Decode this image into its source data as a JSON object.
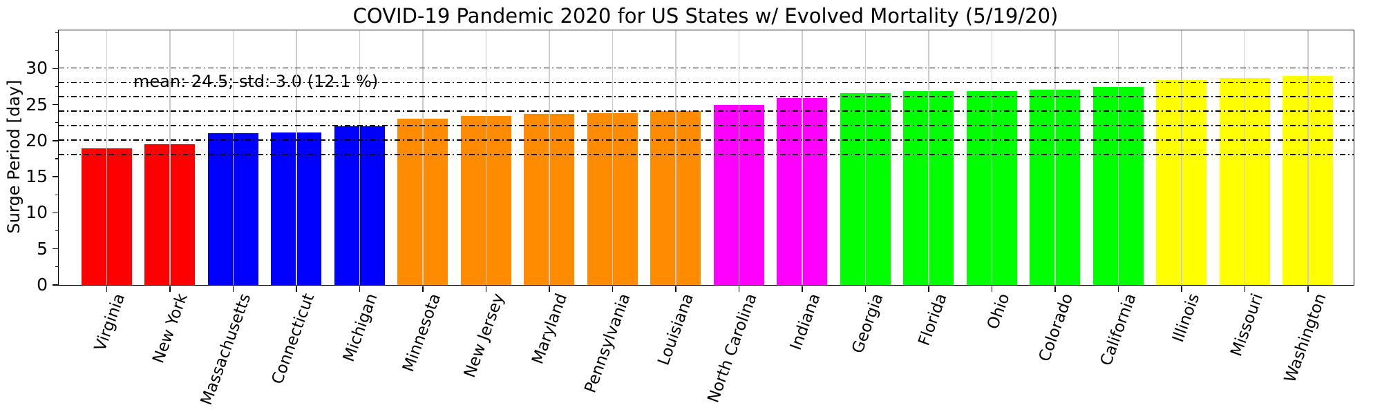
{
  "chart": {
    "title": "COVID-19 Pandemic 2020 for US States w/ Evolved Mortality (5/19/20)",
    "annotation": "mean: 24.5; std: 3.0 (12.1 %)",
    "ylabel": "Surge Period [day]"
  },
  "chart_data": {
    "type": "bar",
    "title": "COVID-19 Pandemic 2020 for US States w/ Evolved Mortality (5/19/20)",
    "xlabel": "",
    "ylabel": "Surge Period [day]",
    "annotation": "mean: 24.5; std: 3.0 (12.1 %)",
    "stats": {
      "mean": 24.5,
      "std": 3.0,
      "std_percent": 12.1
    },
    "categories": [
      "Virginia",
      "New York",
      "Massachusetts",
      "Connecticut",
      "Michigan",
      "Minnesota",
      "New Jersey",
      "Maryland",
      "Pennsylvania",
      "Louisiana",
      "North Carolina",
      "Indiana",
      "Georgia",
      "Florida",
      "Ohio",
      "Colorado",
      "California",
      "Illinois",
      "Missouri",
      "Washington"
    ],
    "values": [
      18.9,
      19.5,
      21.0,
      21.1,
      22.0,
      23.1,
      23.4,
      23.7,
      23.8,
      24.1,
      25.0,
      25.9,
      26.6,
      26.9,
      26.9,
      27.1,
      27.5,
      28.4,
      28.7,
      29.0
    ],
    "bar_colors": [
      "#ff0000",
      "#ff0000",
      "#0000ff",
      "#0000ff",
      "#0000ff",
      "#ff8c00",
      "#ff8c00",
      "#ff8c00",
      "#ff8c00",
      "#ff8c00",
      "#ff00ff",
      "#ff00ff",
      "#00ff00",
      "#00ff00",
      "#00ff00",
      "#00ff00",
      "#00ff00",
      "#ffff00",
      "#ffff00",
      "#ffff00"
    ],
    "ylim": [
      0,
      35.3
    ],
    "yticks": [
      0,
      5,
      10,
      15,
      20,
      25,
      30
    ],
    "ytick_minor_step": 2.5,
    "grid": "vertical gray line at each bar center, drawn over bars",
    "legend": "none",
    "reference_lines": {
      "style": "dash-dot",
      "color": "#000000",
      "values": [
        18.1,
        20.1,
        22.1,
        24.1,
        26.1,
        28.1,
        30.1
      ]
    },
    "tick_label_rotation_deg": 70
  }
}
